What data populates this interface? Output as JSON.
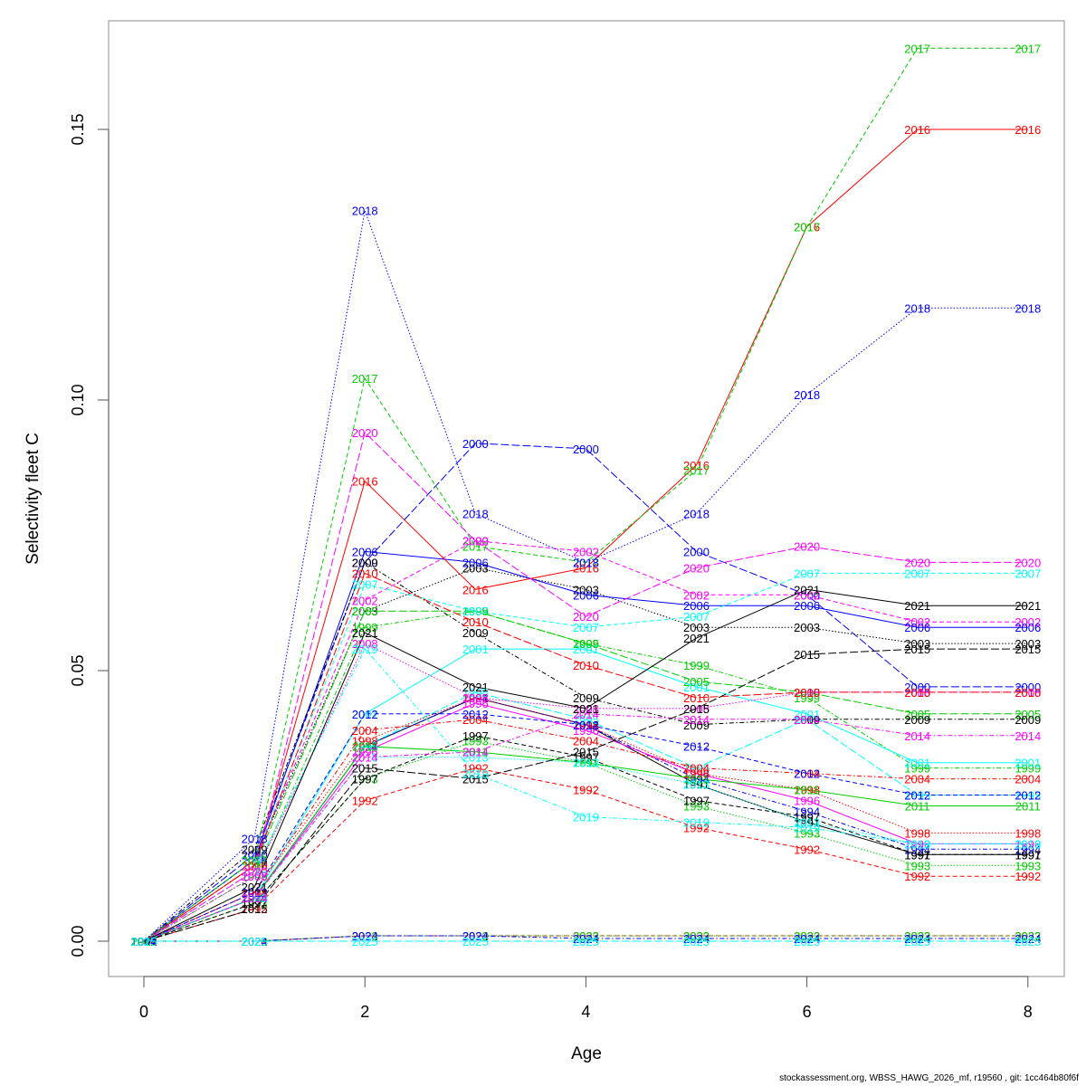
{
  "chart_data": {
    "type": "line",
    "title": "",
    "xlabel": "Age",
    "ylabel": "Selectivity fleet C",
    "xlim": [
      -0.3,
      8.3
    ],
    "ylim": [
      -0.0065,
      0.1705
    ],
    "xticks": [
      0,
      2,
      4,
      6,
      8
    ],
    "xtick_labels": [
      "0",
      "2",
      "4",
      "6",
      "8"
    ],
    "yticks": [
      0.0,
      0.05,
      0.1,
      0.15
    ],
    "ytick_labels": [
      "0.00",
      "0.05",
      "0.10",
      "0.15"
    ],
    "grid": false,
    "legend": "none (year labels at each point)",
    "x": [
      0,
      1,
      2,
      3,
      4,
      5,
      6,
      7,
      8
    ],
    "series": [
      {
        "name": "1991",
        "color": "#000000",
        "dash": "solid",
        "values": [
          0,
          0.008,
          0.036,
          0.045,
          0.04,
          0.029,
          0.022,
          0.016,
          0.016
        ]
      },
      {
        "name": "1992",
        "color": "#ff0000",
        "dash": "dashed",
        "values": [
          0,
          0.006,
          0.026,
          0.032,
          0.028,
          0.021,
          0.017,
          0.012,
          0.012
        ]
      },
      {
        "name": "1993",
        "color": "#00cd00",
        "dash": "dotted",
        "values": [
          0,
          0.007,
          0.03,
          0.037,
          0.033,
          0.025,
          0.02,
          0.014,
          0.014
        ]
      },
      {
        "name": "1994",
        "color": "#0000ff",
        "dash": "dotdash",
        "values": [
          0,
          0.008,
          0.036,
          0.045,
          0.04,
          0.03,
          0.024,
          0.017,
          0.017
        ]
      },
      {
        "name": "1995",
        "color": "#00ffff",
        "dash": "longdash",
        "values": [
          0,
          0.008,
          0.036,
          0.046,
          0.041,
          0.032,
          0.041,
          0.027,
          0.027
        ]
      },
      {
        "name": "1996",
        "color": "#ff00ff",
        "dash": "solid",
        "values": [
          0,
          0.008,
          0.035,
          0.044,
          0.039,
          0.031,
          0.026,
          0.018,
          0.018
        ]
      },
      {
        "name": "1997",
        "color": "#000000",
        "dash": "dashed",
        "values": [
          0,
          0.007,
          0.03,
          0.038,
          0.034,
          0.026,
          0.023,
          0.016,
          0.016
        ]
      },
      {
        "name": "1998",
        "color": "#ff0000",
        "dash": "dotted",
        "values": [
          0,
          0.009,
          0.037,
          0.045,
          0.04,
          0.031,
          0.028,
          0.02,
          0.02
        ]
      },
      {
        "name": "1999",
        "color": "#00cd00",
        "dash": "dotdash",
        "values": [
          0,
          0.012,
          0.058,
          0.061,
          0.055,
          0.051,
          0.045,
          0.032,
          0.032
        ]
      },
      {
        "name": "2000",
        "color": "#0000ff",
        "dash": "longdash",
        "values": [
          0,
          0.016,
          0.07,
          0.092,
          0.091,
          0.072,
          0.064,
          0.047,
          0.047
        ]
      },
      {
        "name": "2001",
        "color": "#00ffff",
        "dash": "solid",
        "values": [
          0,
          0.008,
          0.042,
          0.054,
          0.054,
          0.047,
          0.042,
          0.033,
          0.033
        ]
      },
      {
        "name": "2002",
        "color": "#ff00ff",
        "dash": "dashed",
        "values": [
          0,
          0.015,
          0.063,
          0.074,
          0.072,
          0.064,
          0.064,
          0.059,
          0.059
        ]
      },
      {
        "name": "2003",
        "color": "#000000",
        "dash": "dotted",
        "values": [
          0,
          0.015,
          0.061,
          0.069,
          0.065,
          0.058,
          0.058,
          0.055,
          0.055
        ]
      },
      {
        "name": "2004",
        "color": "#ff0000",
        "dash": "dotdash",
        "values": [
          0,
          0.009,
          0.039,
          0.041,
          0.037,
          0.032,
          0.031,
          0.03,
          0.03
        ]
      },
      {
        "name": "2005",
        "color": "#00cd00",
        "dash": "longdash",
        "values": [
          0,
          0.014,
          0.061,
          0.061,
          0.055,
          0.048,
          0.046,
          0.042,
          0.042
        ]
      },
      {
        "name": "2006",
        "color": "#0000ff",
        "dash": "solid",
        "values": [
          0,
          0.015,
          0.072,
          0.07,
          0.064,
          0.062,
          0.062,
          0.058,
          0.058
        ]
      },
      {
        "name": "2007",
        "color": "#00ffff",
        "dash": "dashed",
        "values": [
          0,
          0.015,
          0.066,
          0.061,
          0.058,
          0.06,
          0.068,
          0.068,
          0.068
        ]
      },
      {
        "name": "2008",
        "color": "#ff00ff",
        "dash": "dotted",
        "values": [
          0,
          0.012,
          0.055,
          0.045,
          0.043,
          0.043,
          0.046,
          0.046,
          0.046
        ]
      },
      {
        "name": "2009",
        "color": "#000000",
        "dash": "dotdash",
        "values": [
          0,
          0.017,
          0.07,
          0.057,
          0.045,
          0.04,
          0.041,
          0.041,
          0.041
        ]
      },
      {
        "name": "2010",
        "color": "#ff0000",
        "dash": "longdash",
        "values": [
          0,
          0.014,
          0.068,
          0.059,
          0.051,
          0.045,
          0.046,
          0.046,
          0.046
        ]
      },
      {
        "name": "2011",
        "color": "#00cd00",
        "dash": "solid",
        "values": [
          0,
          0.008,
          0.036,
          0.035,
          0.033,
          0.03,
          0.028,
          0.025,
          0.025
        ]
      },
      {
        "name": "2012",
        "color": "#0000ff",
        "dash": "dashed",
        "values": [
          0,
          0.009,
          0.042,
          0.042,
          0.04,
          0.036,
          0.031,
          0.027,
          0.027
        ]
      },
      {
        "name": "2013",
        "color": "#00ffff",
        "dash": "dotted",
        "values": [
          0,
          0.008,
          0.034,
          0.034,
          0.033,
          0.029,
          0.022,
          0.018,
          0.018
        ]
      },
      {
        "name": "2014",
        "color": "#ff00ff",
        "dash": "dotdash",
        "values": [
          0,
          0.008,
          0.034,
          0.035,
          0.042,
          0.041,
          0.041,
          0.038,
          0.038
        ]
      },
      {
        "name": "2015",
        "color": "#000000",
        "dash": "longdash",
        "values": [
          0,
          0.006,
          0.032,
          0.03,
          0.035,
          0.043,
          0.053,
          0.054,
          0.054
        ]
      },
      {
        "name": "2016",
        "color": "#ff0000",
        "dash": "solid",
        "values": [
          0,
          0.014,
          0.085,
          0.065,
          0.069,
          0.088,
          0.132,
          0.15,
          0.15
        ]
      },
      {
        "name": "2017",
        "color": "#00cd00",
        "dash": "dashed",
        "values": [
          0,
          0.015,
          0.104,
          0.073,
          0.07,
          0.087,
          0.132,
          0.165,
          0.165
        ]
      },
      {
        "name": "2018",
        "color": "#0000ff",
        "dash": "dotted",
        "values": [
          0,
          0.019,
          0.135,
          0.079,
          0.07,
          0.079,
          0.101,
          0.117,
          0.117
        ]
      },
      {
        "name": "2019",
        "color": "#00ffff",
        "dash": "dotdash",
        "values": [
          0,
          0.013,
          0.054,
          0.031,
          0.023,
          0.022,
          0.021,
          0.018,
          0.018
        ]
      },
      {
        "name": "2020",
        "color": "#ff00ff",
        "dash": "longdash",
        "values": [
          0,
          0.013,
          0.094,
          0.074,
          0.06,
          0.069,
          0.073,
          0.07,
          0.07
        ]
      },
      {
        "name": "2021",
        "color": "#000000",
        "dash": "solid",
        "values": [
          0,
          0.01,
          0.057,
          0.047,
          0.043,
          0.056,
          0.065,
          0.062,
          0.062
        ]
      },
      {
        "name": "2022",
        "color": "#ff0000",
        "dash": "dashed",
        "values": [
          0,
          0.0,
          0.001,
          0.001,
          0.001,
          0.001,
          0.001,
          0.001,
          0.001
        ]
      },
      {
        "name": "2023",
        "color": "#00cd00",
        "dash": "dotted",
        "values": [
          0,
          0.0,
          0.001,
          0.001,
          0.001,
          0.001,
          0.001,
          0.001,
          0.001
        ]
      },
      {
        "name": "2024",
        "color": "#0000ff",
        "dash": "dotdash",
        "values": [
          0,
          0.0,
          0.001,
          0.001,
          0.0005,
          0.0005,
          0.0005,
          0.0005,
          0.0005
        ]
      },
      {
        "name": "2025",
        "color": "#00ffff",
        "dash": "longdash",
        "values": [
          0,
          0.0,
          0.0,
          0.0,
          0.0,
          0.0,
          0.0,
          0.0,
          0.0
        ]
      }
    ]
  },
  "footer": "stockassessment.org, WBSS_HAWG_2026_mf, r19560 , git: 1cc464b80f6f"
}
